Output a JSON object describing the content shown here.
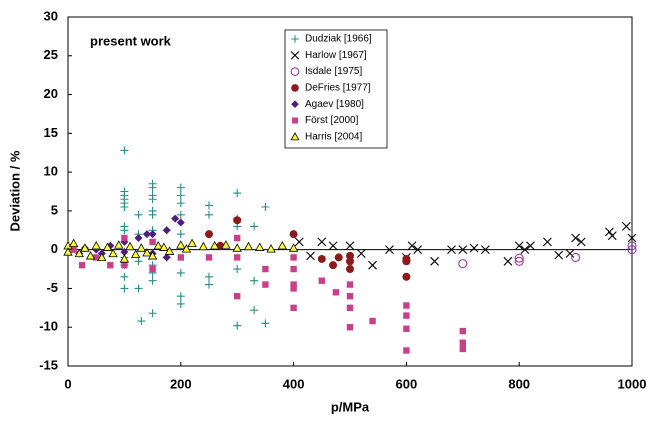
{
  "chart_data": {
    "type": "scatter",
    "x_label": "p/MPa",
    "y_label": "Deviation / %",
    "annotation": "present work",
    "xlim": [
      0,
      1000
    ],
    "xticks": [
      0,
      200,
      400,
      600,
      800,
      1000
    ],
    "ylim": [
      -15,
      30
    ],
    "yticks": [
      -15,
      -10,
      -5,
      0,
      5,
      10,
      15,
      20,
      25,
      30
    ],
    "grid": false,
    "legend": "upper center",
    "series": [
      {
        "name": "Dudziak [1966]",
        "color": "#2a8c8c",
        "marker": "plus",
        "x": [
          100,
          100,
          100,
          100,
          100,
          100,
          100,
          100,
          100,
          100,
          100,
          100,
          125,
          125,
          125,
          125,
          130,
          150,
          150,
          150,
          150,
          150,
          150,
          150,
          150,
          150,
          150,
          150,
          175,
          175,
          200,
          200,
          200,
          200,
          200,
          200,
          200,
          200,
          250,
          250,
          250,
          250,
          250,
          300,
          300,
          300,
          300,
          300,
          330,
          330,
          330,
          350,
          350
        ],
        "values": [
          12.8,
          7.5,
          7,
          6.5,
          6,
          5.5,
          3,
          2.5,
          -1,
          -2,
          -3.5,
          -5,
          4.5,
          2,
          -1.5,
          -5,
          -9.2,
          8.5,
          8,
          7,
          6.5,
          5,
          4.5,
          2.5,
          -2,
          -3,
          -4,
          -8.2,
          2.5,
          -1,
          8,
          7,
          6,
          4.5,
          2,
          -3,
          -6,
          -7,
          5.7,
          4.5,
          2,
          -3.5,
          -4.5,
          7.3,
          4,
          3,
          -2.5,
          -9.8,
          3,
          -4,
          -7.8,
          5.5,
          -9.5
        ]
      },
      {
        "name": "Harlow [1967]",
        "color": "#000000",
        "marker": "cross",
        "x": [
          410,
          430,
          450,
          470,
          500,
          520,
          540,
          570,
          600,
          610,
          620,
          650,
          680,
          700,
          720,
          740,
          780,
          800,
          810,
          820,
          850,
          870,
          890,
          900,
          910,
          960,
          965,
          990,
          1000
        ],
        "values": [
          1,
          -0.8,
          1,
          0.5,
          0.5,
          -0.5,
          -2,
          0,
          -1,
          0.5,
          0,
          -1.5,
          0,
          0,
          0.2,
          0,
          -1.5,
          0.5,
          0,
          0.5,
          1,
          -0.7,
          -0.5,
          1.5,
          1,
          2.3,
          1.8,
          3,
          1.5
        ]
      },
      {
        "name": "Isdale [1975]",
        "color": "#9b3b9b",
        "marker": "circle-open",
        "x": [
          700,
          800,
          800,
          900,
          1000,
          1000
        ],
        "values": [
          -1.8,
          -1.5,
          -1.1,
          -1,
          0.5,
          0
        ]
      },
      {
        "name": "DeFries [1977]",
        "color": "#8b1a1a",
        "marker": "circle",
        "x": [
          250,
          270,
          300,
          400,
          450,
          470,
          480,
          500,
          500,
          500,
          600,
          600,
          600
        ],
        "values": [
          2,
          0.5,
          3.8,
          2,
          -1.2,
          -2,
          -1,
          -1.5,
          -0.8,
          -2.5,
          -1.2,
          -1.5,
          -3.5
        ]
      },
      {
        "name": "Agaev [1980]",
        "color": "#4b1f7a",
        "marker": "diamond",
        "x": [
          20,
          30,
          50,
          60,
          75,
          100,
          100,
          125,
          140,
          150,
          150,
          175,
          175,
          190,
          200
        ],
        "values": [
          -0.5,
          0.2,
          0,
          -0.5,
          0.5,
          1,
          -0.3,
          1.5,
          2,
          2,
          -0.5,
          2.5,
          -1,
          4,
          3.5
        ]
      },
      {
        "name": "Först [2000]",
        "color": "#c8408a",
        "marker": "square",
        "x": [
          10,
          25,
          50,
          75,
          100,
          100,
          150,
          150,
          200,
          250,
          300,
          300,
          300,
          350,
          350,
          400,
          400,
          400,
          400,
          400,
          450,
          475,
          500,
          500,
          500,
          500,
          540,
          600,
          600,
          600,
          600,
          700,
          700,
          700
        ],
        "values": [
          0,
          -2,
          -1,
          -2,
          1.5,
          -2,
          1,
          -2.5,
          -1,
          -1,
          -6,
          -1,
          1.5,
          -2.5,
          -4.5,
          -1,
          -2.5,
          -4.5,
          -5,
          -7.5,
          -4,
          -5.5,
          -4.5,
          -6,
          -7.5,
          -10,
          -9.2,
          -7.2,
          -8.5,
          -10.2,
          -13,
          -10.5,
          -12,
          -12.8
        ]
      },
      {
        "name": "Harris [2004]",
        "color": "#ffff33",
        "edgecolor": "#000000",
        "marker": "triangle",
        "x": [
          0,
          0,
          10,
          20,
          30,
          40,
          50,
          60,
          70,
          80,
          90,
          100,
          110,
          120,
          130,
          140,
          150,
          160,
          170,
          180,
          200,
          210,
          220,
          240,
          260,
          280,
          300,
          320,
          340,
          360,
          380,
          400
        ],
        "values": [
          0.5,
          -0.3,
          0.8,
          -0.5,
          0.2,
          -0.8,
          0.5,
          -1,
          0.3,
          -0.5,
          0.6,
          -1.2,
          0.4,
          -0.6,
          0.2,
          -0.4,
          -0.8,
          0.5,
          0.3,
          -0.2,
          0.6,
          0.1,
          0.8,
          0.4,
          0.5,
          0.6,
          0.2,
          0.4,
          0.3,
          0.1,
          0.5,
          0.2
        ]
      }
    ]
  }
}
